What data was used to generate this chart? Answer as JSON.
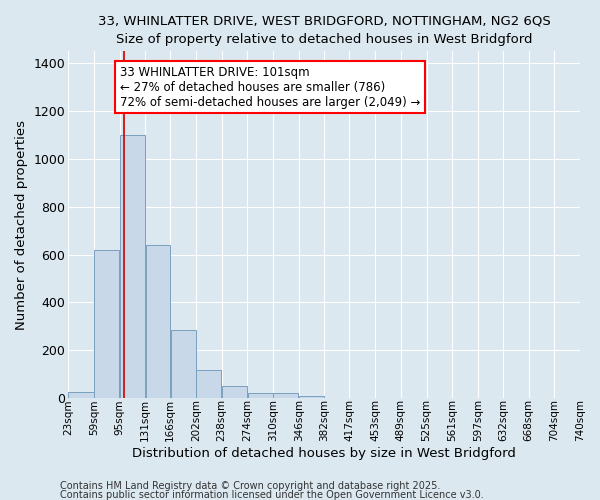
{
  "title1": "33, WHINLATTER DRIVE, WEST BRIDGFORD, NOTTINGHAM, NG2 6QS",
  "title2": "Size of property relative to detached houses in West Bridgford",
  "xlabel": "Distribution of detached houses by size in West Bridgford",
  "ylabel": "Number of detached properties",
  "bar_left_edges": [
    23,
    59,
    95,
    131,
    166,
    202,
    238,
    274,
    310,
    346,
    382,
    417,
    453,
    489,
    525,
    561,
    597,
    632,
    668,
    704
  ],
  "bar_widths": [
    36,
    36,
    36,
    35,
    36,
    36,
    36,
    36,
    36,
    36,
    35,
    36,
    36,
    36,
    36,
    36,
    35,
    36,
    36,
    36
  ],
  "bar_heights": [
    25,
    620,
    1100,
    640,
    285,
    115,
    48,
    20,
    20,
    10,
    0,
    0,
    0,
    0,
    0,
    0,
    0,
    0,
    0,
    0
  ],
  "bar_color": "#c8d8e8",
  "bar_edgecolor": "#7aa0be",
  "vline_x": 101,
  "vline_color": "#cc0000",
  "ylim": [
    0,
    1450
  ],
  "xlim": [
    23,
    740
  ],
  "tick_labels": [
    "23sqm",
    "59sqm",
    "95sqm",
    "131sqm",
    "166sqm",
    "202sqm",
    "238sqm",
    "274sqm",
    "310sqm",
    "346sqm",
    "382sqm",
    "417sqm",
    "453sqm",
    "489sqm",
    "525sqm",
    "561sqm",
    "597sqm",
    "632sqm",
    "668sqm",
    "704sqm",
    "740sqm"
  ],
  "tick_positions": [
    23,
    59,
    95,
    131,
    166,
    202,
    238,
    274,
    310,
    346,
    382,
    417,
    453,
    489,
    525,
    561,
    597,
    632,
    668,
    704,
    740
  ],
  "annotation_text": "33 WHINLATTER DRIVE: 101sqm\n← 27% of detached houses are smaller (786)\n72% of semi-detached houses are larger (2,049) →",
  "bg_color": "#dce8f0",
  "grid_color": "#ffffff",
  "footer1": "Contains HM Land Registry data © Crown copyright and database right 2025.",
  "footer2": "Contains public sector information licensed under the Open Government Licence v3.0."
}
